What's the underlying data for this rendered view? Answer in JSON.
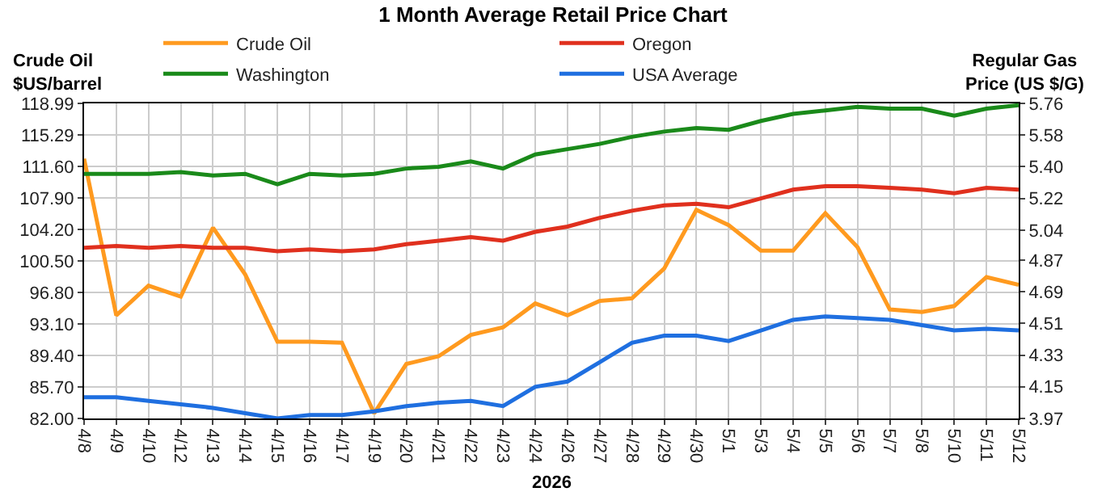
{
  "chart_data": {
    "type": "line",
    "title": "1 Month Average Retail Price Chart",
    "ylabel": "Crude Oil\n$US/barrel",
    "y2label": "Regular Gas\nPrice (US $/G)",
    "xlabel": "2026",
    "categories": [
      "4/8",
      "4/9",
      "4/10",
      "4/12",
      "4/13",
      "4/14",
      "4/15",
      "4/16",
      "4/17",
      "4/19",
      "4/20",
      "4/21",
      "4/22",
      "4/23",
      "4/24",
      "4/26",
      "4/27",
      "4/28",
      "4/29",
      "4/30",
      "5/1",
      "5/3",
      "5/4",
      "5/5",
      "5/6",
      "5/7",
      "5/8",
      "5/10",
      "5/11",
      "5/12"
    ],
    "series": [
      {
        "name": "Crude Oil",
        "color": "#ff9a1f",
        "values": [
          112.5,
          94.1,
          97.6,
          96.3,
          104.4,
          98.9,
          91.0,
          91.0,
          90.9,
          82.6,
          88.4,
          89.3,
          91.8,
          92.7,
          95.5,
          94.1,
          95.8,
          96.1,
          99.6,
          106.5,
          104.7,
          101.7,
          101.7,
          106.1,
          102.1,
          94.8,
          94.5,
          95.2,
          98.6,
          97.7
        ]
      },
      {
        "name": "Oregon",
        "color": "#e0301e",
        "axis": "y2",
        "values": [
          4.94,
          4.95,
          4.94,
          4.95,
          4.94,
          4.94,
          4.92,
          4.93,
          4.92,
          4.93,
          4.96,
          4.98,
          5.0,
          4.98,
          5.03,
          5.06,
          5.11,
          5.15,
          5.18,
          5.19,
          5.17,
          5.22,
          5.27,
          5.29,
          5.29,
          5.28,
          5.27,
          5.25,
          5.28,
          5.27
        ]
      },
      {
        "name": "Washington",
        "color": "#1a8a1a",
        "axis": "y2",
        "values": [
          5.36,
          5.36,
          5.36,
          5.37,
          5.35,
          5.36,
          5.3,
          5.36,
          5.35,
          5.36,
          5.39,
          5.4,
          5.43,
          5.39,
          5.47,
          5.5,
          5.53,
          5.57,
          5.6,
          5.62,
          5.61,
          5.66,
          5.7,
          5.72,
          5.74,
          5.73,
          5.73,
          5.69,
          5.73,
          5.75
        ]
      },
      {
        "name": "USA Average",
        "color": "#1f6fe0",
        "axis": "y2",
        "values": [
          4.09,
          4.09,
          4.07,
          4.05,
          4.03,
          4.0,
          3.97,
          3.99,
          3.99,
          4.01,
          4.04,
          4.06,
          4.07,
          4.04,
          4.15,
          4.18,
          4.29,
          4.4,
          4.44,
          4.44,
          4.41,
          4.47,
          4.53,
          4.55,
          4.54,
          4.53,
          4.5,
          4.47,
          4.48,
          4.47
        ]
      }
    ],
    "ylim": [
      82.0,
      118.99
    ],
    "yticks": [
      {
        "value": 82.0,
        "label": "82.00"
      },
      {
        "value": 85.7,
        "label": "85.70"
      },
      {
        "value": 89.4,
        "label": "89.40"
      },
      {
        "value": 93.1,
        "label": "93.10"
      },
      {
        "value": 96.8,
        "label": "96.80"
      },
      {
        "value": 100.5,
        "label": "100.50"
      },
      {
        "value": 104.2,
        "label": "104.20"
      },
      {
        "value": 107.9,
        "label": "107.90"
      },
      {
        "value": 111.6,
        "label": "111.60"
      },
      115.29,
      118.99
    ],
    "y2lim": [
      3.97,
      5.76
    ],
    "y2ticks": [
      3.97,
      4.15,
      4.33,
      4.51,
      4.69,
      4.87,
      5.04,
      5.22,
      {
        "value": 5.4,
        "label": "5.40"
      },
      5.58,
      5.76
    ],
    "grid": true,
    "legend": "top",
    "marker": "none",
    "line_style": "solid"
  }
}
